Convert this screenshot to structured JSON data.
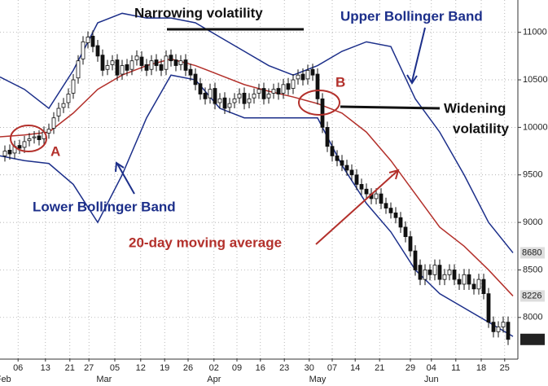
{
  "chart_data": {
    "type": "candlestick",
    "annotations": {
      "narrowing": "Narrowing volatility",
      "upper": "Upper Bollinger Band",
      "lower": "Lower Bollinger Band",
      "ma": "20-day moving average",
      "widening": [
        "Widening",
        "volatility"
      ],
      "a": "A",
      "b": "B"
    },
    "xlim": [
      0,
      106
    ],
    "ylim": [
      7570,
      11340
    ],
    "yticks": [
      8000,
      8500,
      9000,
      9500,
      10000,
      10500,
      11000
    ],
    "xticks": [
      {
        "value": 3.7,
        "label": "06"
      },
      {
        "value": 9.3,
        "label": "13"
      },
      {
        "value": 14.3,
        "label": "21"
      },
      {
        "value": 18.2,
        "label": "27"
      },
      {
        "value": 23.5,
        "label": "05"
      },
      {
        "value": 28.8,
        "label": "12"
      },
      {
        "value": 33.7,
        "label": "19"
      },
      {
        "value": 38.5,
        "label": "26"
      },
      {
        "value": 43.8,
        "label": "02"
      },
      {
        "value": 48.5,
        "label": "09"
      },
      {
        "value": 53.3,
        "label": "16"
      },
      {
        "value": 58.2,
        "label": "23"
      },
      {
        "value": 63.3,
        "label": "30"
      },
      {
        "value": 68,
        "label": "07"
      },
      {
        "value": 72.7,
        "label": "14"
      },
      {
        "value": 77.7,
        "label": "21"
      },
      {
        "value": 84,
        "label": "29"
      },
      {
        "value": 88.3,
        "label": "04"
      },
      {
        "value": 93.3,
        "label": "11"
      },
      {
        "value": 98.5,
        "label": "18"
      },
      {
        "value": 103.3,
        "label": "25"
      }
    ],
    "month_labels": [
      {
        "value": 0.7,
        "label": "Feb"
      },
      {
        "value": 21.3,
        "label": "Mar"
      },
      {
        "value": 43.8,
        "label": "Apr"
      },
      {
        "value": 65,
        "label": "May"
      },
      {
        "value": 88.3,
        "label": "Jun"
      }
    ],
    "last_values": [
      8680,
      8226,
      7769
    ],
    "grid": true,
    "candles": {
      "x": [
        1,
        2,
        3,
        4,
        5,
        6,
        7,
        8,
        9,
        10,
        11,
        12,
        13,
        14,
        15,
        16,
        17,
        18,
        19,
        20,
        21,
        22,
        23,
        24,
        25,
        26,
        27,
        28,
        29,
        30,
        31,
        32,
        33,
        34,
        35,
        36,
        37,
        38,
        39,
        40,
        41,
        42,
        43,
        44,
        45,
        46,
        47,
        48,
        49,
        50,
        51,
        52,
        53,
        54,
        55,
        56,
        57,
        58,
        59,
        60,
        61,
        62,
        63,
        64,
        65,
        66,
        67,
        68,
        69,
        70,
        71,
        72,
        73,
        74,
        75,
        76,
        77,
        78,
        79,
        80,
        81,
        82,
        83,
        84,
        85,
        86,
        87,
        88,
        89,
        90,
        91,
        92,
        93,
        94,
        95,
        96,
        97,
        98,
        99,
        100,
        101,
        102,
        103,
        104
      ],
      "open": [
        9700,
        9760,
        9730,
        9810,
        9790,
        9860,
        9890,
        9910,
        9880,
        9940,
        9990,
        10120,
        10210,
        10260,
        10360,
        10520,
        10720,
        10890,
        10960,
        10860,
        10760,
        10610,
        10660,
        10710,
        10560,
        10660,
        10610,
        10710,
        10740,
        10660,
        10610,
        10710,
        10660,
        10610,
        10760,
        10710,
        10660,
        10710,
        10610,
        10560,
        10460,
        10360,
        10310,
        10410,
        10260,
        10310,
        10210,
        10260,
        10310,
        10360,
        10260,
        10310,
        10360,
        10410,
        10310,
        10360,
        10410,
        10360,
        10460,
        10410,
        10510,
        10560,
        10510,
        10610,
        10560,
        10300,
        10000,
        9800,
        9700,
        9650,
        9600,
        9550,
        9500,
        9400,
        9350,
        9300,
        9250,
        9300,
        9200,
        9150,
        9100,
        9050,
        8950,
        8850,
        8700,
        8550,
        8400,
        8500,
        8450,
        8550,
        8400,
        8450,
        8500,
        8400,
        8350,
        8450,
        8350,
        8300,
        8400,
        8250,
        7950,
        7850,
        7900,
        7950
      ],
      "high": [
        9810,
        9820,
        9860,
        9870,
        9910,
        9940,
        9960,
        9970,
        10010,
        10040,
        10160,
        10260,
        10310,
        10410,
        10560,
        10760,
        10960,
        11010,
        11020,
        10920,
        10820,
        10710,
        10760,
        10770,
        10710,
        10720,
        10760,
        10810,
        10800,
        10720,
        10760,
        10770,
        10720,
        10810,
        10820,
        10770,
        10760,
        10770,
        10670,
        10620,
        10520,
        10420,
        10460,
        10470,
        10360,
        10370,
        10310,
        10360,
        10410,
        10420,
        10360,
        10410,
        10460,
        10470,
        10410,
        10460,
        10470,
        10510,
        10520,
        10560,
        10610,
        10620,
        10660,
        10670,
        10620,
        10360,
        10060,
        9860,
        9760,
        9710,
        9660,
        9610,
        9560,
        9460,
        9410,
        9360,
        9360,
        9360,
        9260,
        9210,
        9160,
        9110,
        9010,
        8910,
        8760,
        8610,
        8560,
        8560,
        8610,
        8610,
        8510,
        8560,
        8560,
        8460,
        8510,
        8510,
        8410,
        8460,
        8460,
        8310,
        8010,
        7960,
        8010,
        8010
      ],
      "low": [
        9640,
        9660,
        9670,
        9720,
        9730,
        9800,
        9830,
        9810,
        9820,
        9880,
        9930,
        10060,
        10150,
        10200,
        10300,
        10460,
        10660,
        10830,
        10790,
        10690,
        10540,
        10550,
        10600,
        10490,
        10500,
        10540,
        10550,
        10650,
        10590,
        10540,
        10550,
        10590,
        10540,
        10550,
        10640,
        10590,
        10600,
        10540,
        10490,
        10390,
        10290,
        10240,
        10250,
        10190,
        10200,
        10140,
        10150,
        10200,
        10250,
        10190,
        10200,
        10250,
        10300,
        10240,
        10250,
        10300,
        10290,
        10300,
        10340,
        10350,
        10450,
        10440,
        10450,
        10490,
        10240,
        9940,
        9740,
        9640,
        9590,
        9540,
        9490,
        9440,
        9340,
        9290,
        9240,
        9190,
        9190,
        9140,
        9090,
        9040,
        8990,
        8890,
        8790,
        8640,
        8440,
        8340,
        8340,
        8390,
        8390,
        8340,
        8340,
        8390,
        8340,
        8290,
        8290,
        8290,
        8240,
        8240,
        8190,
        7890,
        7790,
        7790,
        7840,
        7709
      ],
      "close": [
        9750,
        9720,
        9800,
        9780,
        9850,
        9880,
        9900,
        9870,
        9950,
        9980,
        10100,
        10200,
        10250,
        10350,
        10500,
        10700,
        10900,
        10950,
        10850,
        10750,
        10600,
        10650,
        10700,
        10550,
        10650,
        10600,
        10700,
        10750,
        10650,
        10600,
        10700,
        10650,
        10600,
        10750,
        10700,
        10650,
        10700,
        10600,
        10550,
        10450,
        10350,
        10300,
        10400,
        10250,
        10300,
        10200,
        10250,
        10300,
        10350,
        10250,
        10300,
        10350,
        10400,
        10300,
        10350,
        10400,
        10350,
        10450,
        10400,
        10500,
        10550,
        10500,
        10600,
        10550,
        10300,
        10000,
        9800,
        9700,
        9650,
        9600,
        9550,
        9500,
        9400,
        9350,
        9300,
        9250,
        9300,
        9200,
        9150,
        9100,
        9050,
        8950,
        8850,
        8700,
        8500,
        8400,
        8500,
        8450,
        8550,
        8400,
        8450,
        8500,
        8400,
        8350,
        8450,
        8350,
        8300,
        8400,
        8250,
        7950,
        7850,
        7900,
        7950,
        7769
      ]
    },
    "series": [
      {
        "color": "#1c2f8a",
        "x": [
          0,
          5,
          10,
          15,
          20,
          25,
          30,
          35,
          40,
          45,
          50,
          55,
          60,
          65,
          70,
          75,
          80,
          85,
          90,
          95,
          100,
          105
        ],
        "values": [
          10530,
          10400,
          10200,
          10600,
          11100,
          11200,
          11150,
          11150,
          11100,
          10950,
          10800,
          10650,
          10550,
          10650,
          10800,
          10900,
          10850,
          10300,
          9950,
          9500,
          9000,
          8680
        ]
      },
      {
        "color": "#1c2f8a",
        "x": [
          0,
          5,
          10,
          15,
          20,
          25,
          30,
          35,
          40,
          45,
          50,
          55,
          60,
          65,
          70,
          75,
          80,
          85,
          90,
          95,
          100,
          105
        ],
        "values": [
          9700,
          9650,
          9620,
          9400,
          9000,
          9500,
          10100,
          10550,
          10500,
          10200,
          10100,
          10100,
          10100,
          10100,
          9600,
          9200,
          8900,
          8500,
          8250,
          8100,
          7950,
          7800
        ]
      },
      {
        "color": "#b3302b",
        "x": [
          0,
          5,
          10,
          15,
          20,
          25,
          30,
          35,
          40,
          45,
          50,
          55,
          60,
          65,
          70,
          75,
          80,
          85,
          90,
          95,
          100,
          105
        ],
        "values": [
          9900,
          9920,
          9950,
          10150,
          10400,
          10550,
          10650,
          10720,
          10650,
          10550,
          10450,
          10380,
          10320,
          10250,
          10150,
          9950,
          9650,
          9300,
          8950,
          8750,
          8500,
          8226
        ]
      }
    ]
  }
}
